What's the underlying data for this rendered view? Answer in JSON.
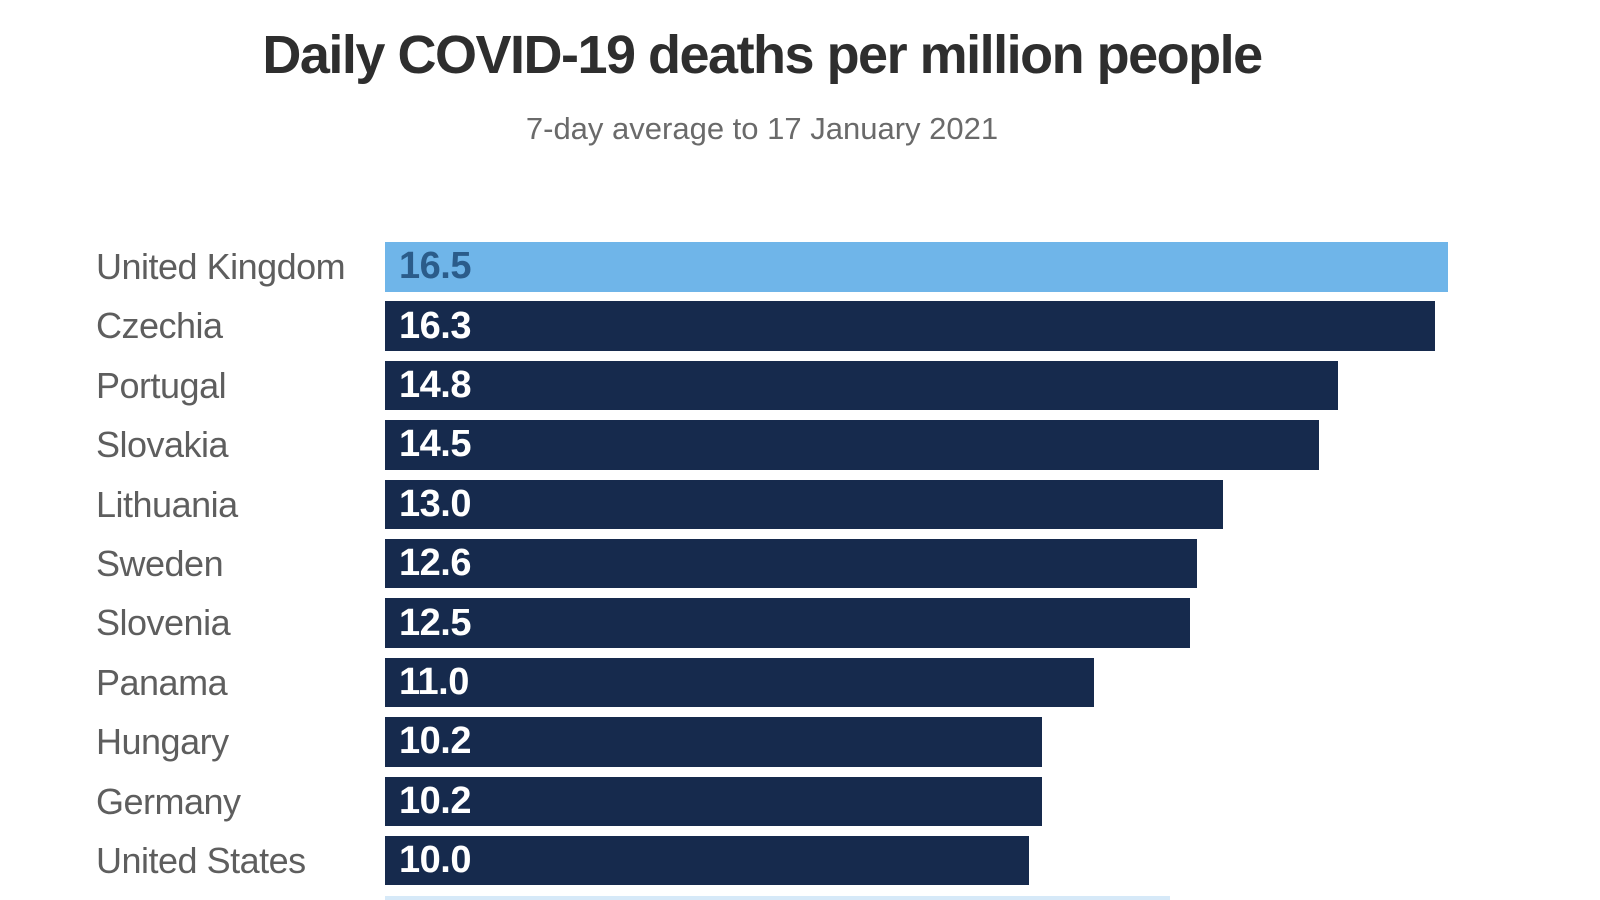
{
  "header": {
    "title": "Daily COVID-19 deaths per million people",
    "subtitle": "7-day average to 17 January 2021"
  },
  "chart_data": {
    "type": "bar",
    "orientation": "horizontal",
    "title": "Daily COVID-19 deaths per million people",
    "subtitle": "7-day average to 17 January 2021",
    "categories": [
      "United Kingdom",
      "Czechia",
      "Portugal",
      "Slovakia",
      "Lithuania",
      "Sweden",
      "Slovenia",
      "Panama",
      "Hungary",
      "Germany",
      "United States"
    ],
    "values": [
      16.5,
      16.3,
      14.8,
      14.5,
      13.0,
      12.6,
      12.5,
      11.0,
      10.2,
      10.2,
      10.0
    ],
    "value_labels": [
      "16.5",
      "16.3",
      "14.8",
      "14.5",
      "13.0",
      "12.6",
      "12.5",
      "11.0",
      "10.2",
      "10.2",
      "10.0"
    ],
    "xlim": [
      0,
      16.5
    ],
    "highlight_index": 0,
    "highlight_category": "United Kingdom",
    "legend": false,
    "grid": false,
    "axis_labels_visible": false,
    "colors": {
      "bar_default": "#162a4d",
      "bar_highlight": "#6fb5e9",
      "value_text_default": "#ffffff",
      "value_text_highlight": "#2b5c8a",
      "category_label": "#5e5e5e",
      "title_text": "#2e2e2e",
      "subtitle_text": "#6a6a6a",
      "partial_next_bar": "#d6e9f8"
    }
  }
}
